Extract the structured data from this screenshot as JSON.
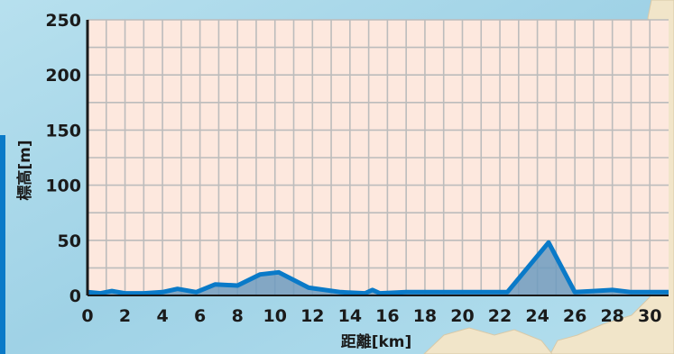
{
  "chart_data": {
    "type": "area",
    "xlabel": "距離[km]",
    "ylabel": "標高[m]",
    "xlim": [
      0,
      31
    ],
    "ylim": [
      0,
      250
    ],
    "xticks": [
      0,
      2,
      4,
      6,
      8,
      10,
      12,
      14,
      16,
      18,
      20,
      22,
      24,
      26,
      28,
      30
    ],
    "yticks": [
      0,
      50,
      100,
      150,
      200,
      250
    ],
    "grid": true,
    "x": [
      0,
      0.7,
      1.3,
      2,
      3,
      4,
      4.8,
      5.8,
      6.8,
      8,
      9.2,
      10.2,
      11.8,
      13.5,
      14.8,
      15.2,
      15.6,
      17,
      19,
      21,
      22.4,
      24.6,
      26,
      27,
      28,
      29,
      30,
      31
    ],
    "y": [
      3,
      2,
      4,
      2,
      2,
      3,
      6,
      3,
      10,
      9,
      19,
      21,
      7,
      3,
      2,
      5,
      2,
      3,
      3,
      3,
      3,
      48,
      3,
      4,
      5,
      3,
      3,
      3
    ],
    "colors": {
      "line": "#0a7ac8",
      "fill": "#6d9bc0",
      "plot_bg": "#fde8de",
      "grid": "#bcbcbc",
      "page_bg": "#a9d8e8",
      "land": "#f1e5c9"
    }
  }
}
